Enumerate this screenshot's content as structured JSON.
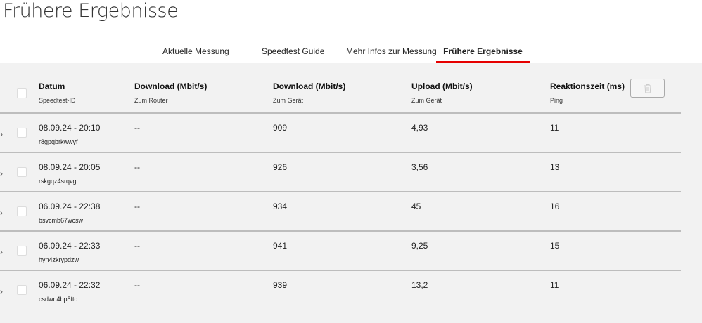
{
  "page_title": "Frühere Ergebnisse",
  "tabs": [
    {
      "label": "Aktuelle Messung"
    },
    {
      "label": "Speedtest Guide"
    },
    {
      "label": "Mehr Infos zur Messung"
    },
    {
      "label": "Frühere Ergebnisse",
      "active": true
    }
  ],
  "accent_color": "#e60000",
  "table": {
    "headers": [
      {
        "label": "Datum",
        "sub": "Speedtest-ID"
      },
      {
        "label": "Download (Mbit/s)",
        "sub": "Zum Router"
      },
      {
        "label": "Download (Mbit/s)",
        "sub": "Zum Gerät"
      },
      {
        "label": "Upload (Mbit/s)",
        "sub": "Zum Gerät"
      },
      {
        "label": "Reaktionszeit (ms)",
        "sub": "Ping"
      }
    ],
    "delete_icon": "trash-icon",
    "rows": [
      {
        "date": "08.09.24 - 20:10",
        "id": "r8gpqbrkwwyf",
        "router": "--",
        "device": "909",
        "upload": "4,93",
        "ping": "11"
      },
      {
        "date": "08.09.24 - 20:05",
        "id": "rskgqz4srqvg",
        "router": "--",
        "device": "926",
        "upload": "3,56",
        "ping": "13"
      },
      {
        "date": "06.09.24 - 22:38",
        "id": "bsvcmb67wcsw",
        "router": "--",
        "device": "934",
        "upload": "45",
        "ping": "16"
      },
      {
        "date": "06.09.24 - 22:33",
        "id": "hyn4zkrypdzw",
        "router": "--",
        "device": "941",
        "upload": "9,25",
        "ping": "15"
      },
      {
        "date": "06.09.24 - 22:32",
        "id": "csdwn4bp5ftq",
        "router": "--",
        "device": "939",
        "upload": "13,2",
        "ping": "11"
      }
    ]
  }
}
